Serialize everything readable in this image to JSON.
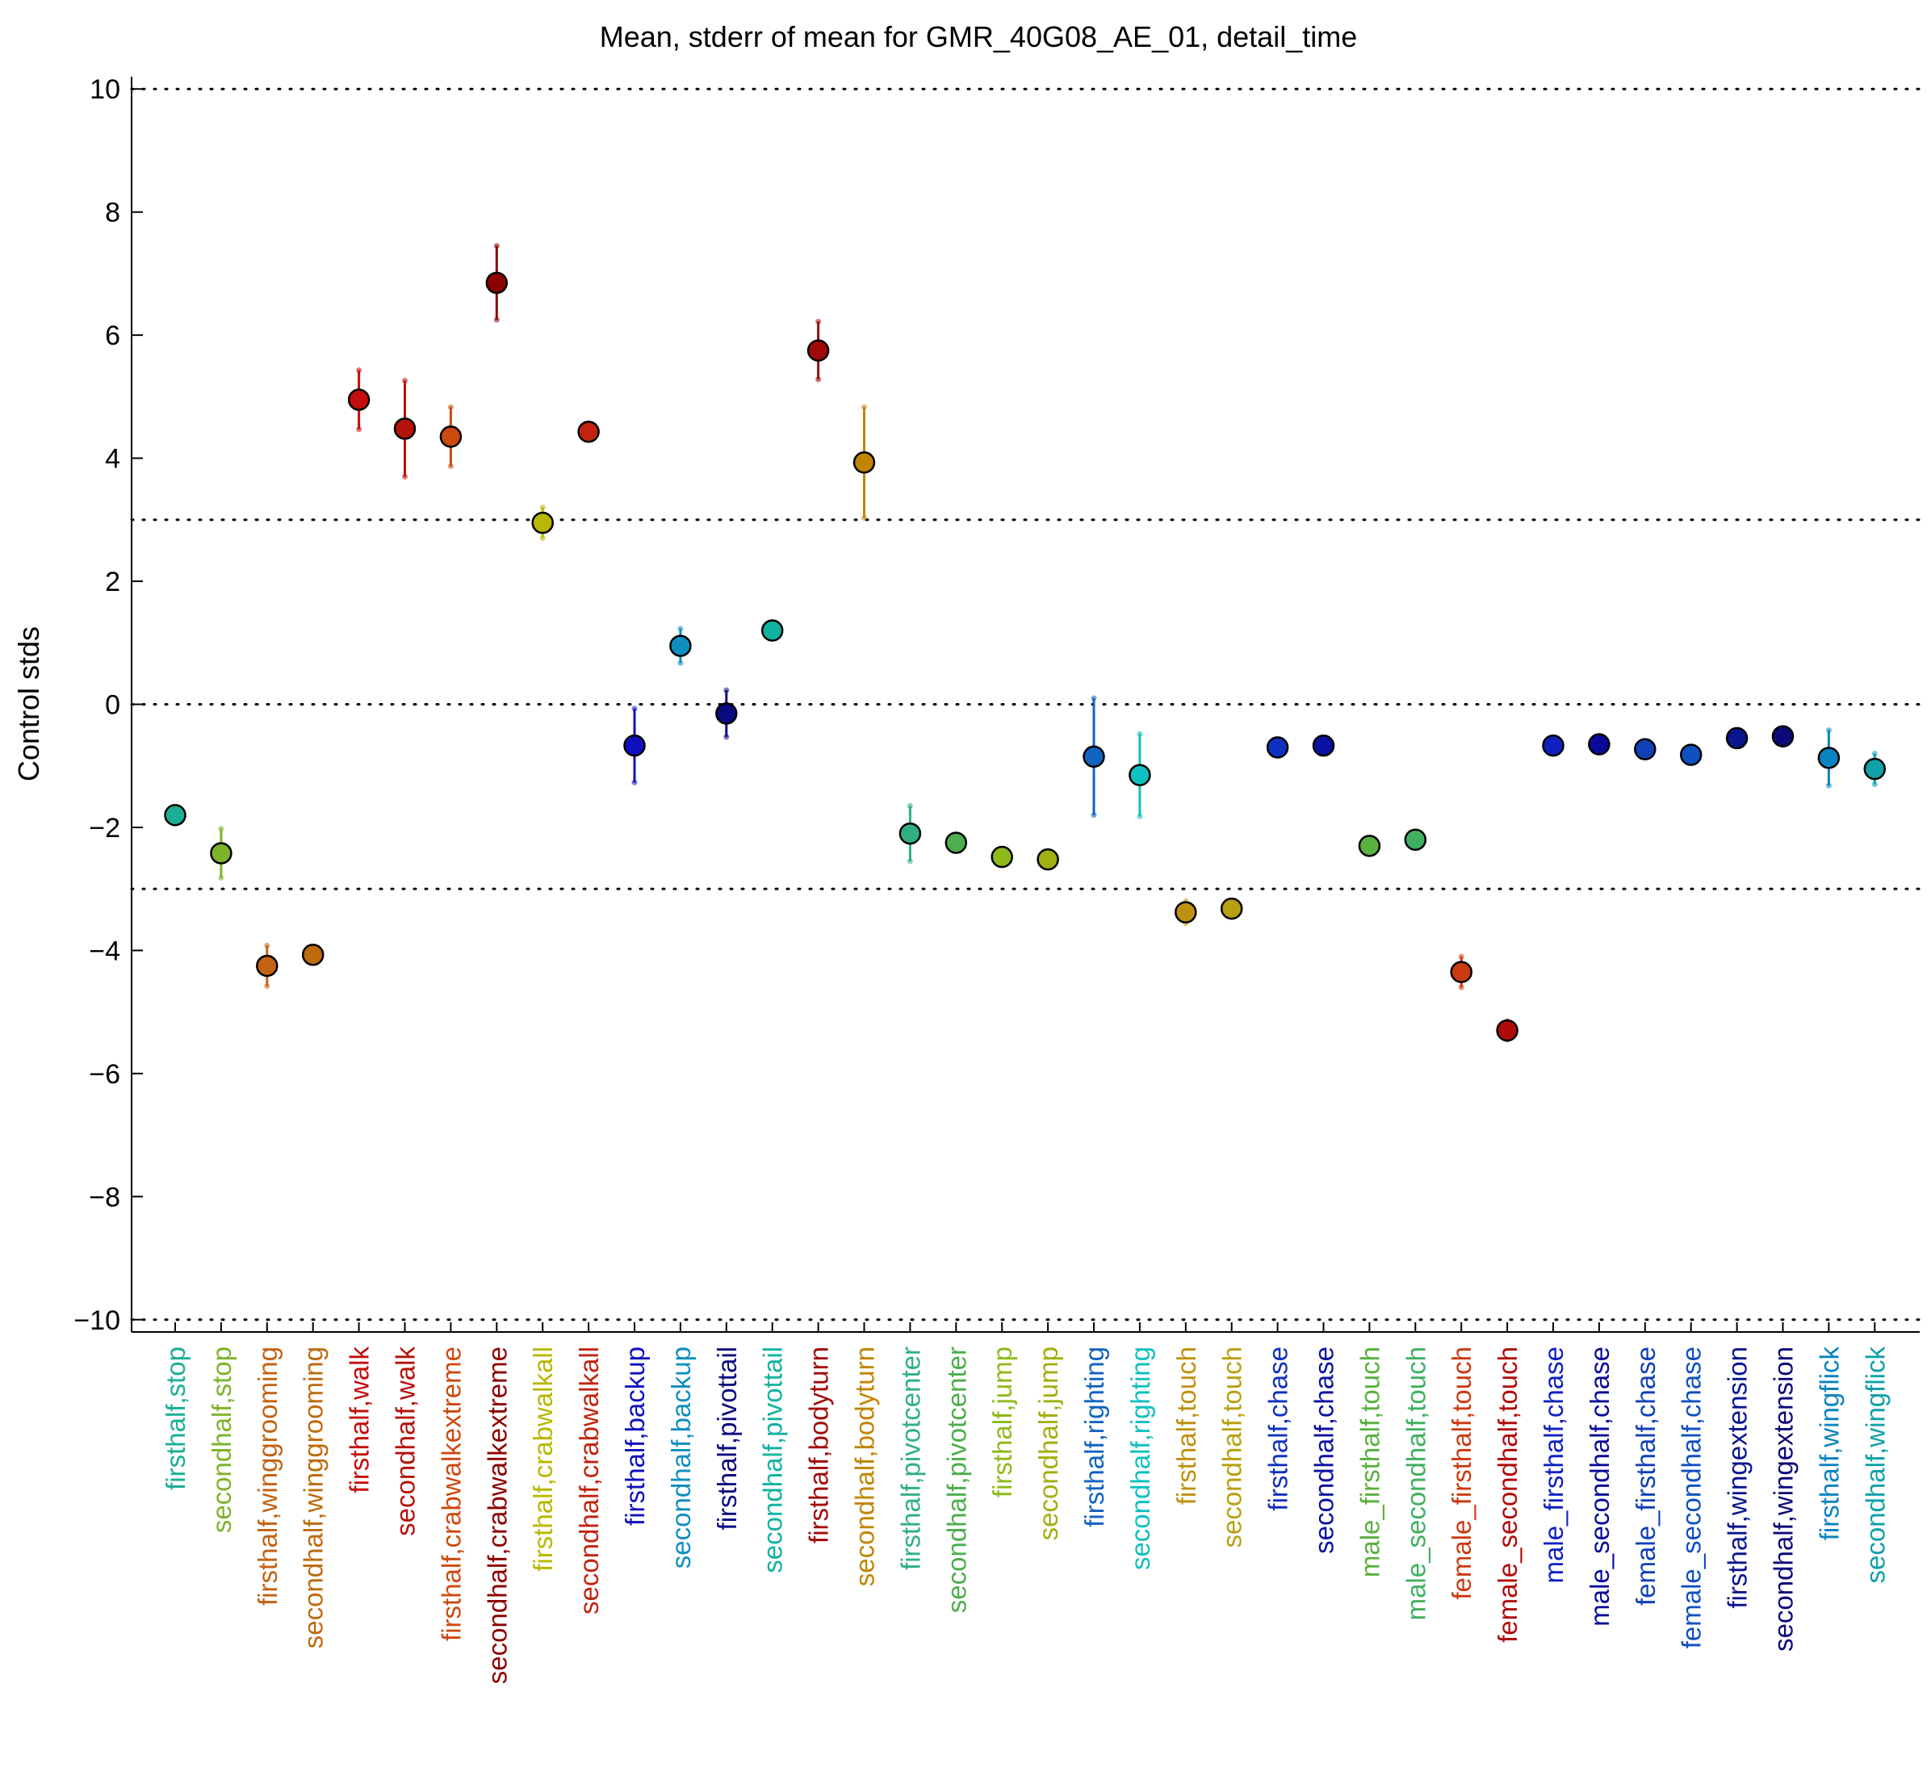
{
  "chart_data": {
    "type": "scatter",
    "title": "Mean, stderr of mean for GMR_40G08_AE_01, detail_time",
    "xlabel": "",
    "ylabel": "Control stds",
    "ylim": [
      -10.2,
      10.2
    ],
    "yticks": [
      10,
      8,
      6,
      4,
      2,
      0,
      -2,
      -4,
      -6,
      -8,
      -10
    ],
    "ytick_labels": [
      "10",
      "8",
      "6",
      "4",
      "2",
      "0",
      "−2",
      "−4",
      "−6",
      "−8",
      "−10"
    ],
    "reference_lines": [
      10,
      3,
      0,
      -3,
      -10
    ],
    "grid": false,
    "legend": "none",
    "categories": [
      "firsthalf,stop",
      "secondhalf,stop",
      "firsthalf,winggrooming",
      "secondhalf,winggrooming",
      "firsthalf,walk",
      "secondhalf,walk",
      "firsthalf,crabwalkextreme",
      "secondhalf,crabwalkextreme",
      "firsthalf,crabwalkall",
      "secondhalf,crabwalkall",
      "firsthalf,backup",
      "secondhalf,backup",
      "firsthalf,pivottail",
      "secondhalf,pivottail",
      "firsthalf,bodyturn",
      "secondhalf,bodyturn",
      "firsthalf,pivotcenter",
      "secondhalf,pivotcenter",
      "firsthalf,jump",
      "secondhalf,jump",
      "firsthalf,righting",
      "secondhalf,righting",
      "firsthalf,touch",
      "secondhalf,touch",
      "firsthalf,chase",
      "secondhalf,chase",
      "male_firsthalf,touch",
      "male_secondhalf,touch",
      "female_firsthalf,touch",
      "female_secondhalf,touch",
      "male_firsthalf,chase",
      "male_secondhalf,chase",
      "female_firsthalf,chase",
      "female_secondhalf,chase",
      "firsthalf,wingextension",
      "secondhalf,wingextension",
      "firsthalf,wingflick",
      "secondhalf,wingflick"
    ],
    "means": [
      -1.8,
      -2.42,
      -4.25,
      -4.07,
      4.95,
      4.48,
      4.35,
      6.85,
      2.95,
      4.43,
      -0.67,
      0.95,
      -0.15,
      1.2,
      5.75,
      3.93,
      -2.1,
      -2.25,
      -2.48,
      -2.52,
      -0.85,
      -1.15,
      -3.38,
      -3.32,
      -0.7,
      -0.67,
      -2.3,
      -2.2,
      -4.35,
      -5.3,
      -0.67,
      -0.65,
      -0.73,
      -0.82,
      -0.55,
      -0.52,
      -0.87,
      -1.05
    ],
    "stderr": [
      0,
      0.4,
      0.33,
      0,
      0.48,
      0.78,
      0.48,
      0.6,
      0.25,
      0,
      0.6,
      0.28,
      0.38,
      0,
      0.47,
      0.9,
      0.45,
      0,
      0,
      0,
      0.95,
      0.67,
      0.18,
      0,
      0,
      0,
      0,
      0,
      0.25,
      0.15,
      0,
      0,
      0,
      0,
      0,
      0,
      0.45,
      0.25
    ],
    "colors": [
      "#1aaf94",
      "#7db32a",
      "#c26212",
      "#bd6b0e",
      "#c40d0d",
      "#b5120b",
      "#cc4a10",
      "#8c0000",
      "#b8b800",
      "#c02410",
      "#1010c0",
      "#0f8fbf",
      "#0a0a80",
      "#10b3a0",
      "#a00a0a",
      "#c08500",
      "#30b080",
      "#4cae4c",
      "#8eba1a",
      "#a0b010",
      "#1063c0",
      "#10c0c0",
      "#c09010",
      "#b8a010",
      "#1030c0",
      "#0a10a0",
      "#5ab040",
      "#40b060",
      "#cc3a10",
      "#b00a0a",
      "#1020c0",
      "#0a0a98",
      "#1040b8",
      "#1050c0",
      "#0a1590",
      "#0a0a78",
      "#0a83bf",
      "#10a0a8"
    ]
  }
}
